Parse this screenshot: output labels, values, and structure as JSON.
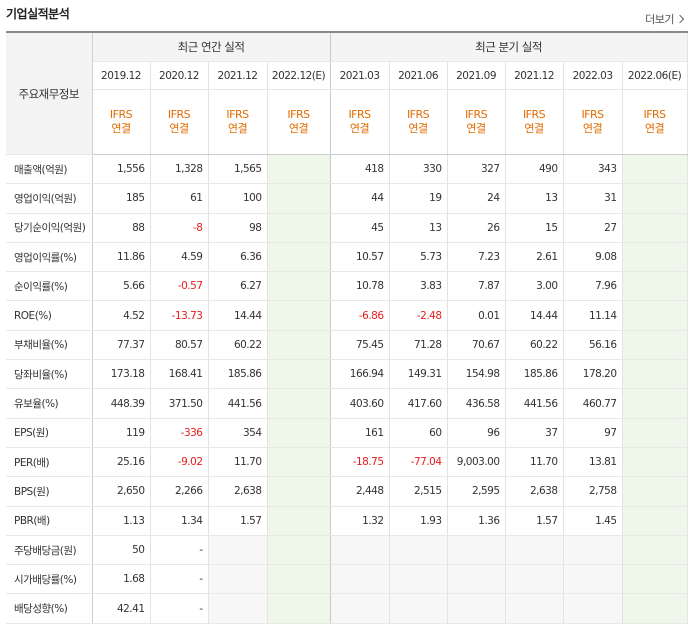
{
  "header": {
    "title": "기업실적분석",
    "more_label": "더보기"
  },
  "table": {
    "row_header": "주요재무정보",
    "groups": {
      "annual": "최근 연간 실적",
      "quarterly": "최근 분기 실적"
    },
    "annual_periods": [
      "2019.12",
      "2020.12",
      "2021.12",
      "2022.12(E)"
    ],
    "quarter_periods": [
      "2021.03",
      "2021.06",
      "2021.09",
      "2021.12",
      "2022.03",
      "2022.06(E)"
    ],
    "standard": "IFRS",
    "basis": "연결",
    "rows": [
      {
        "label": "매출액(억원)",
        "annual": [
          "1,556",
          "1,328",
          "1,565",
          ""
        ],
        "quarter": [
          "418",
          "330",
          "327",
          "490",
          "343",
          ""
        ]
      },
      {
        "label": "영업이익(억원)",
        "annual": [
          "185",
          "61",
          "100",
          ""
        ],
        "quarter": [
          "44",
          "19",
          "24",
          "13",
          "31",
          ""
        ]
      },
      {
        "label": "당기순이익(억원)",
        "annual": [
          "88",
          "-8",
          "98",
          ""
        ],
        "quarter": [
          "45",
          "13",
          "26",
          "15",
          "27",
          ""
        ]
      },
      {
        "label": "영업이익률(%)",
        "annual": [
          "11.86",
          "4.59",
          "6.36",
          ""
        ],
        "quarter": [
          "10.57",
          "5.73",
          "7.23",
          "2.61",
          "9.08",
          ""
        ]
      },
      {
        "label": "순이익률(%)",
        "annual": [
          "5.66",
          "-0.57",
          "6.27",
          ""
        ],
        "quarter": [
          "10.78",
          "3.83",
          "7.87",
          "3.00",
          "7.96",
          ""
        ]
      },
      {
        "label": "ROE(%)",
        "annual": [
          "4.52",
          "-13.73",
          "14.44",
          ""
        ],
        "quarter": [
          "-6.86",
          "-2.48",
          "0.01",
          "14.44",
          "11.14",
          ""
        ]
      },
      {
        "label": "부채비율(%)",
        "annual": [
          "77.37",
          "80.57",
          "60.22",
          ""
        ],
        "quarter": [
          "75.45",
          "71.28",
          "70.67",
          "60.22",
          "56.16",
          ""
        ]
      },
      {
        "label": "당좌비율(%)",
        "annual": [
          "173.18",
          "168.41",
          "185.86",
          ""
        ],
        "quarter": [
          "166.94",
          "149.31",
          "154.98",
          "185.86",
          "178.20",
          ""
        ]
      },
      {
        "label": "유보율(%)",
        "annual": [
          "448.39",
          "371.50",
          "441.56",
          ""
        ],
        "quarter": [
          "403.60",
          "417.60",
          "436.58",
          "441.56",
          "460.77",
          ""
        ]
      },
      {
        "label": "EPS(원)",
        "annual": [
          "119",
          "-336",
          "354",
          ""
        ],
        "quarter": [
          "161",
          "60",
          "96",
          "37",
          "97",
          ""
        ]
      },
      {
        "label": "PER(배)",
        "annual": [
          "25.16",
          "-9.02",
          "11.70",
          ""
        ],
        "quarter": [
          "-18.75",
          "-77.04",
          "9,003.00",
          "11.70",
          "13.81",
          ""
        ]
      },
      {
        "label": "BPS(원)",
        "annual": [
          "2,650",
          "2,266",
          "2,638",
          ""
        ],
        "quarter": [
          "2,448",
          "2,515",
          "2,595",
          "2,638",
          "2,758",
          ""
        ]
      },
      {
        "label": "PBR(배)",
        "annual": [
          "1.13",
          "1.34",
          "1.57",
          ""
        ],
        "quarter": [
          "1.32",
          "1.93",
          "1.36",
          "1.57",
          "1.45",
          ""
        ]
      },
      {
        "label": "주당배당금(원)",
        "annual": [
          "50",
          "-",
          "",
          ""
        ],
        "quarter": [
          "",
          "",
          "",
          "",
          "",
          ""
        ]
      },
      {
        "label": "시가배당률(%)",
        "annual": [
          "1.68",
          "-",
          "",
          ""
        ],
        "quarter": [
          "",
          "",
          "",
          "",
          "",
          ""
        ]
      },
      {
        "label": "배당성향(%)",
        "annual": [
          "42.41",
          "-",
          "",
          ""
        ],
        "quarter": [
          "",
          "",
          "",
          "",
          "",
          ""
        ]
      }
    ]
  },
  "colors": {
    "negative": "#e61e1e",
    "ifrs": "#e26b00",
    "estimate_bg": "#eef7ea"
  }
}
